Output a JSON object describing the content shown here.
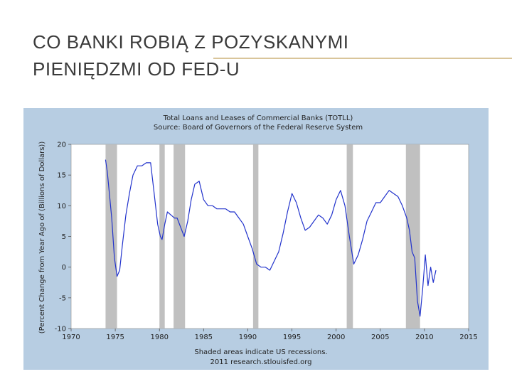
{
  "slide": {
    "title_line1": "CO BANKI ROBIĄ Z POZYSKANYMI",
    "title_line2": "PIENIĘDZMI OD FED-U"
  },
  "colors": {
    "panel_bg": "#b7cde2",
    "plot_bg": "#ffffff",
    "line": "#2233cc",
    "recession": "#c0c0c0",
    "text": "#222222",
    "title_rule": "#d9c59a"
  },
  "chart_data": {
    "type": "line",
    "title": "Total Loans and Leases of Commercial Banks (TOTLL)",
    "subtitle": "Source: Board of Governors of the Federal Reserve System",
    "xlabel": "",
    "ylabel": "(Percent Change from Year Ago of (Billions of Dollars))",
    "footnote_line1": "Shaded areas indicate US recessions.",
    "footnote_line2": "2011 research.stlouisfed.org",
    "xlim": [
      1970,
      2015
    ],
    "ylim": [
      -10,
      20
    ],
    "x_ticks": [
      1970,
      1975,
      1980,
      1985,
      1990,
      1995,
      2000,
      2005,
      2010,
      2015
    ],
    "y_ticks": [
      -10,
      -5,
      0,
      5,
      10,
      15,
      20
    ],
    "grid": false,
    "recessions": [
      [
        1973.9,
        1975.2
      ],
      [
        1980.0,
        1980.6
      ],
      [
        1981.6,
        1982.9
      ],
      [
        1990.6,
        1991.2
      ],
      [
        2001.2,
        2001.9
      ],
      [
        2007.9,
        2009.5
      ]
    ],
    "series": [
      {
        "x": [
          1973.9,
          1974.1,
          1974.3,
          1974.6,
          1974.9,
          1975.2,
          1975.5,
          1975.8,
          1976.2,
          1976.6,
          1977.0,
          1977.5,
          1978.0,
          1978.5,
          1979.0,
          1979.4,
          1979.8,
          1980.1,
          1980.3,
          1980.6,
          1980.9,
          1981.3,
          1981.7,
          1982.0,
          1982.4,
          1982.8,
          1983.2,
          1983.6,
          1984.0,
          1984.5,
          1985.0,
          1985.5,
          1986.0,
          1986.5,
          1987.0,
          1987.5,
          1988.0,
          1988.5,
          1989.0,
          1989.5,
          1990.0,
          1990.5,
          1991.0,
          1991.5,
          1992.0,
          1992.5,
          1993.0,
          1993.5,
          1994.0,
          1994.5,
          1995.0,
          1995.5,
          1996.0,
          1996.5,
          1997.0,
          1997.5,
          1998.0,
          1998.5,
          1999.0,
          1999.5,
          2000.0,
          2000.5,
          2001.0,
          2001.5,
          2002.0,
          2002.5,
          2003.0,
          2003.5,
          2004.0,
          2004.5,
          2005.0,
          2005.5,
          2006.0,
          2006.5,
          2007.0,
          2007.5,
          2008.0,
          2008.3,
          2008.6,
          2008.9,
          2009.2,
          2009.5,
          2009.8,
          2010.1,
          2010.4,
          2010.7,
          2011.0,
          2011.3
        ],
        "y": [
          17.5,
          15.5,
          12.5,
          8.0,
          1.5,
          -1.5,
          -0.5,
          3.5,
          8.5,
          12.0,
          15.0,
          16.5,
          16.5,
          17.0,
          17.0,
          12.0,
          7.0,
          5.0,
          4.5,
          7.0,
          9.0,
          8.5,
          8.0,
          8.0,
          6.5,
          5.0,
          7.5,
          11.0,
          13.5,
          14.0,
          11.0,
          10.0,
          10.0,
          9.5,
          9.5,
          9.5,
          9.0,
          9.0,
          8.0,
          7.0,
          5.0,
          3.0,
          0.5,
          0.0,
          0.0,
          -0.5,
          1.0,
          2.5,
          5.5,
          9.0,
          12.0,
          10.5,
          8.0,
          6.0,
          6.5,
          7.5,
          8.5,
          8.0,
          7.0,
          8.5,
          11.0,
          12.5,
          10.0,
          5.0,
          0.5,
          2.0,
          4.5,
          7.5,
          9.0,
          10.5,
          10.5,
          11.5,
          12.5,
          12.0,
          11.5,
          10.0,
          8.0,
          6.0,
          2.5,
          1.5,
          -5.5,
          -8.0,
          -3.5,
          2.0,
          -3.0,
          0.0,
          -2.5,
          -0.5
        ]
      }
    ]
  }
}
